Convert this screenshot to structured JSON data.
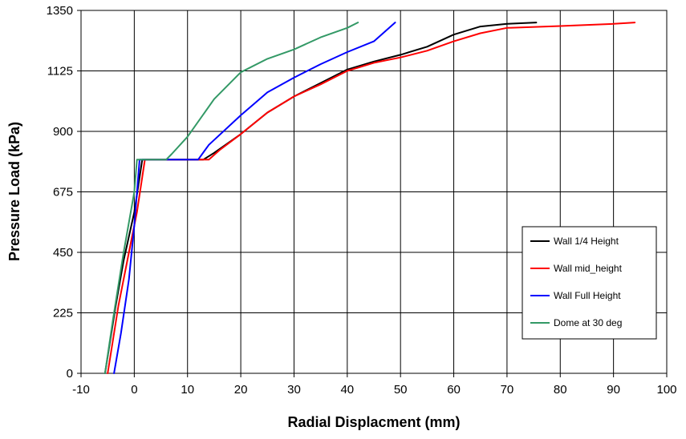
{
  "chart_data": {
    "type": "line",
    "title": "",
    "xlabel": "Radial Displacment (mm)",
    "ylabel": "Pressure Load (kPa)",
    "xlim": [
      -10,
      100
    ],
    "ylim": [
      0,
      1350
    ],
    "xticks": [
      -10,
      0,
      10,
      20,
      30,
      40,
      50,
      60,
      70,
      80,
      90,
      100
    ],
    "yticks": [
      0,
      225,
      450,
      675,
      900,
      1125,
      1350
    ],
    "grid": true,
    "legend_position": "right",
    "series": [
      {
        "name": "Wall 1/4 Height",
        "color": "#000000",
        "points": [
          [
            -5.5,
            0
          ],
          [
            -3.5,
            250
          ],
          [
            -2,
            420
          ],
          [
            0,
            600
          ],
          [
            1.5,
            795
          ],
          [
            13,
            795
          ],
          [
            15,
            820
          ],
          [
            20,
            890
          ],
          [
            25,
            970
          ],
          [
            30,
            1030
          ],
          [
            35,
            1080
          ],
          [
            40,
            1130
          ],
          [
            45,
            1160
          ],
          [
            50,
            1185
          ],
          [
            55,
            1215
          ],
          [
            60,
            1260
          ],
          [
            65,
            1290
          ],
          [
            70,
            1300
          ],
          [
            75.5,
            1305
          ]
        ]
      },
      {
        "name": "Wall mid_height",
        "color": "#ff0000",
        "points": [
          [
            -5,
            0
          ],
          [
            -3,
            250
          ],
          [
            -1,
            450
          ],
          [
            0.5,
            600
          ],
          [
            2,
            795
          ],
          [
            14,
            795
          ],
          [
            16,
            830
          ],
          [
            20,
            890
          ],
          [
            25,
            970
          ],
          [
            30,
            1030
          ],
          [
            35,
            1075
          ],
          [
            40,
            1125
          ],
          [
            45,
            1155
          ],
          [
            50,
            1175
          ],
          [
            55,
            1200
          ],
          [
            60,
            1235
          ],
          [
            65,
            1265
          ],
          [
            70,
            1285
          ],
          [
            80,
            1292
          ],
          [
            90,
            1300
          ],
          [
            94,
            1305
          ]
        ]
      },
      {
        "name": "Wall Full Height",
        "color": "#0000ff",
        "points": [
          [
            -3.8,
            0
          ],
          [
            -2.5,
            150
          ],
          [
            -1,
            350
          ],
          [
            0,
            550
          ],
          [
            1,
            795
          ],
          [
            12,
            795
          ],
          [
            14,
            850
          ],
          [
            20,
            960
          ],
          [
            25,
            1045
          ],
          [
            30,
            1100
          ],
          [
            35,
            1150
          ],
          [
            40,
            1195
          ],
          [
            45,
            1235
          ],
          [
            49,
            1305
          ]
        ]
      },
      {
        "name": "Dome at 30 deg",
        "color": "#339966",
        "points": [
          [
            -5.5,
            0
          ],
          [
            -4,
            200
          ],
          [
            -2,
            450
          ],
          [
            0,
            675
          ],
          [
            0.5,
            795
          ],
          [
            6,
            795
          ],
          [
            7,
            815
          ],
          [
            10,
            880
          ],
          [
            15,
            1020
          ],
          [
            20,
            1120
          ],
          [
            25,
            1170
          ],
          [
            30,
            1205
          ],
          [
            35,
            1250
          ],
          [
            40,
            1285
          ],
          [
            42,
            1305
          ]
        ]
      }
    ]
  }
}
